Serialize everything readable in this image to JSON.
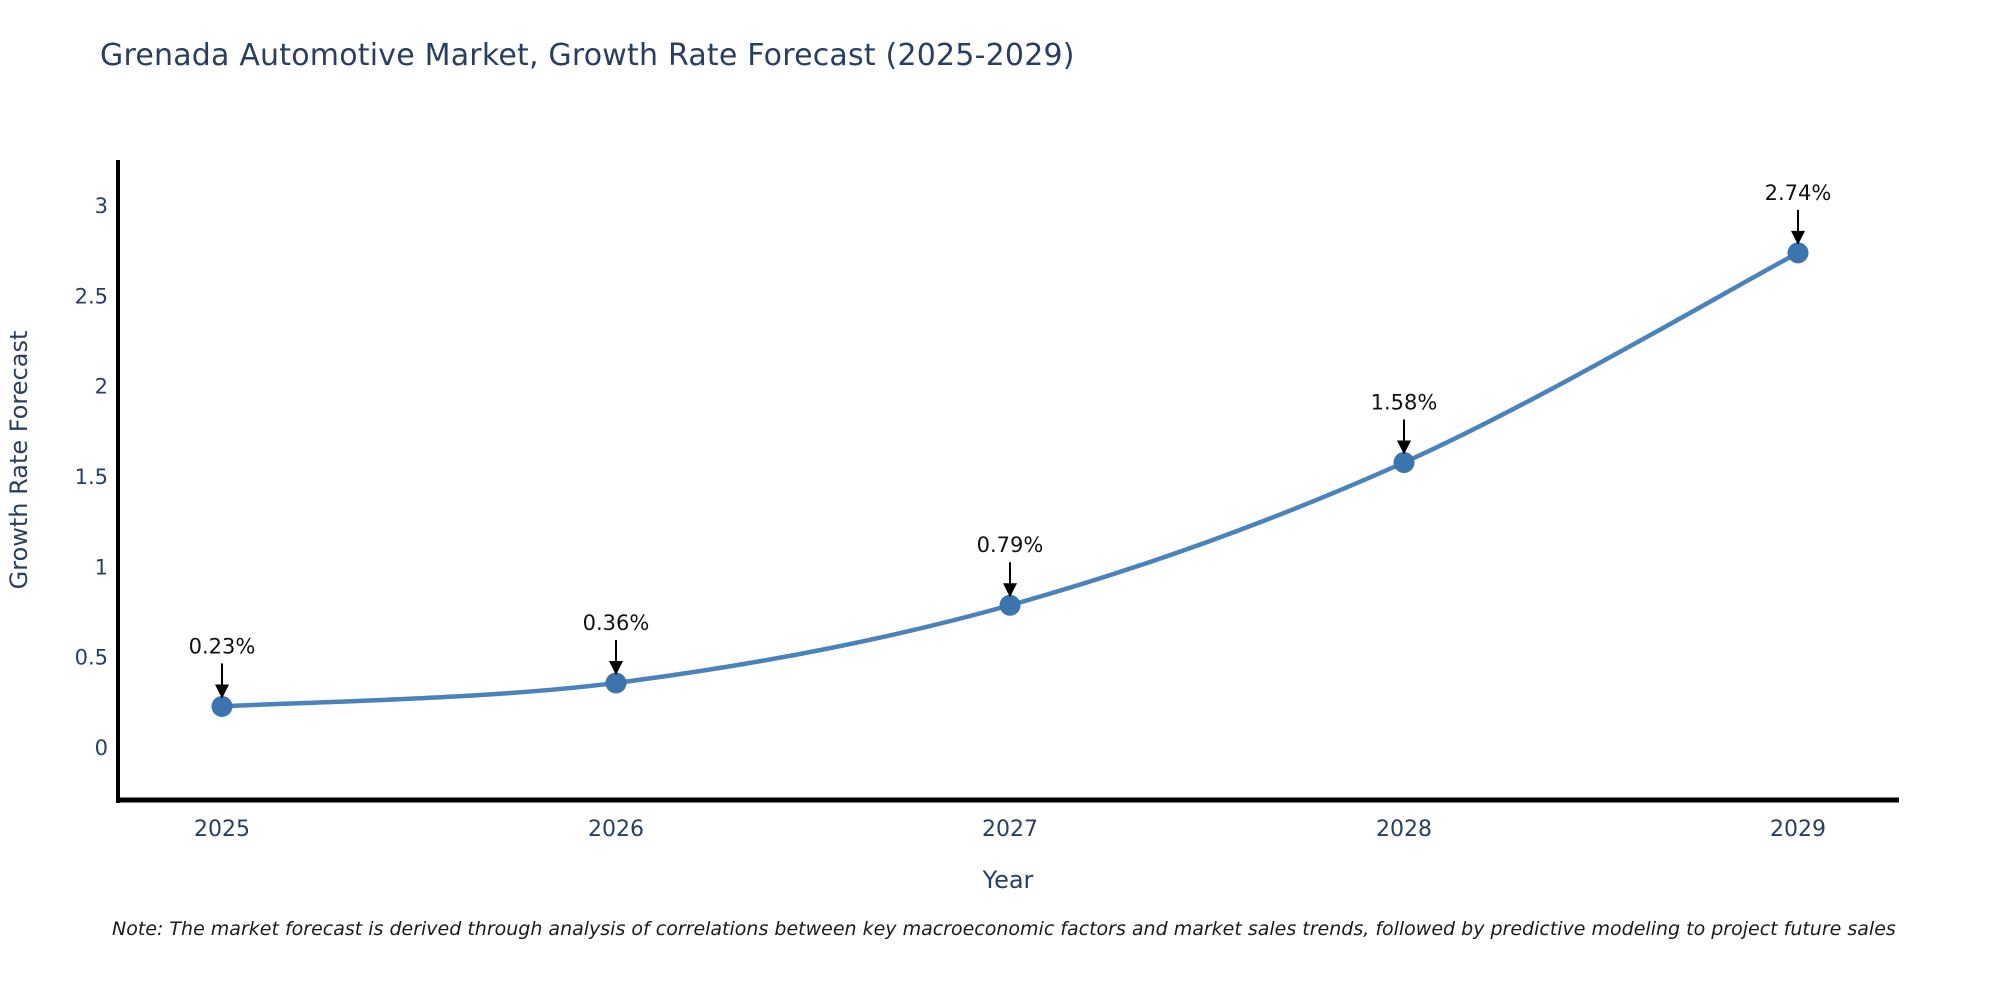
{
  "title": {
    "text": "Grenada Automotive Market, Growth Rate Forecast (2025-2029)"
  },
  "note": {
    "text": "Note: The market forecast is derived through analysis of correlations between key macroeconomic factors and market sales trends, followed by predictive modeling to project future sales"
  },
  "chart_data": {
    "type": "line",
    "title": "Grenada Automotive Market, Growth Rate Forecast (2025-2029)",
    "xlabel": "Year",
    "ylabel": "Growth Rate Forecast",
    "x": [
      "2025",
      "2026",
      "2027",
      "2028",
      "2029"
    ],
    "series": [
      {
        "name": "Growth Rate Forecast",
        "values": [
          0.23,
          0.36,
          0.79,
          1.58,
          2.74
        ]
      }
    ],
    "point_labels": [
      "0.23%",
      "0.36%",
      "0.79%",
      "1.58%",
      "2.74%"
    ],
    "yticks": [
      "0",
      "0.5",
      "1",
      "1.5",
      "2",
      "2.5",
      "3"
    ],
    "ytick_values": [
      0,
      0.5,
      1,
      1.5,
      2,
      2.5,
      3
    ],
    "ylim": [
      -0.29,
      3.25
    ],
    "grid": false,
    "legend_position": "none",
    "line_shape": "spline",
    "annotations_have_arrows": true,
    "colors": {
      "line": "#4a82ba",
      "marker": "#3c74ad",
      "axis": "#000000",
      "text": "#2a3f5f",
      "annotation": "#111111",
      "arrow": "#000000"
    }
  }
}
